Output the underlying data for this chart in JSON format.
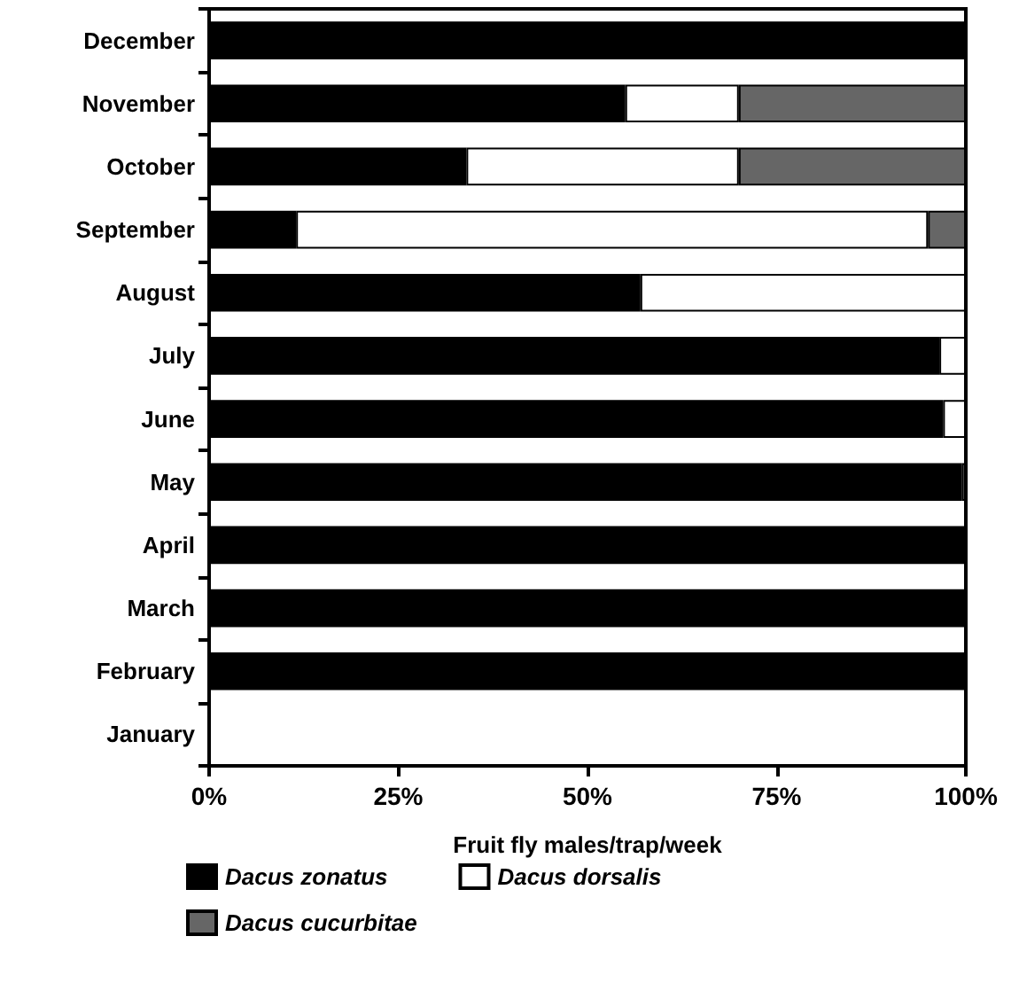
{
  "chart_data": {
    "type": "bar",
    "orientation": "horizontal",
    "stacked": true,
    "categories": [
      "December",
      "November",
      "October",
      "September",
      "August",
      "July",
      "June",
      "May",
      "April",
      "March",
      "February",
      "January"
    ],
    "series": [
      {
        "name": "Dacus zonatus",
        "color": "#000000",
        "values": [
          100,
          55,
          34,
          11.5,
          57,
          96.5,
          97,
          99.5,
          100,
          100,
          100,
          0
        ]
      },
      {
        "name": "Dacus dorsalis",
        "color": "#ffffff",
        "values": [
          0,
          15,
          36,
          83.5,
          43,
          3.5,
          3,
          0.5,
          0,
          0,
          0,
          0
        ]
      },
      {
        "name": "Dacus cucurbitae",
        "color": "#666666",
        "values": [
          0,
          30,
          30,
          5,
          0,
          0,
          0,
          0,
          0,
          0,
          0,
          0
        ]
      }
    ],
    "xlabel": "Fruit fly males/trap/week",
    "xlim": [
      0,
      100
    ],
    "xticks": [
      {
        "value": 0,
        "label": "0%"
      },
      {
        "value": 25,
        "label": "25%"
      },
      {
        "value": 50,
        "label": "50%"
      },
      {
        "value": 75,
        "label": "75%"
      },
      {
        "value": 100,
        "label": "100%"
      }
    ],
    "grid": false,
    "legend": "bottom"
  }
}
